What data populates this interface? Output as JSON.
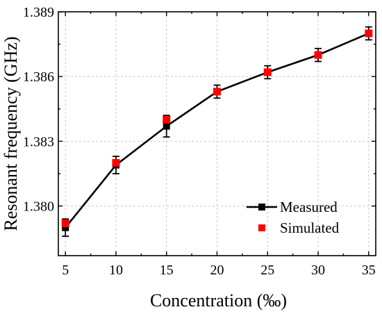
{
  "chart_data": {
    "type": "line",
    "xlabel": "Concentration (‰)",
    "ylabel": "Resonant frequency (GHz)",
    "xlim": [
      4.3,
      35.7
    ],
    "ylim": [
      1.3777,
      1.389
    ],
    "xticks": [
      5,
      10,
      15,
      20,
      25,
      30,
      35
    ],
    "xtick_labels": [
      "5",
      "10",
      "15",
      "20",
      "25",
      "30",
      "35"
    ],
    "yticks": [
      1.38,
      1.383,
      1.386,
      1.389
    ],
    "ytick_labels": [
      "1.380",
      "1.383",
      "1.386",
      "1.389"
    ],
    "grid": true,
    "legend_position": "bottom-right",
    "series": [
      {
        "name": "Measured",
        "style": "line-square",
        "color": "#000000",
        "x": [
          5,
          10,
          15,
          20,
          25,
          30,
          35
        ],
        "y": [
          1.379,
          1.3819,
          1.3837,
          1.3853,
          1.3862,
          1.387,
          1.388
        ],
        "err": [
          0.0004,
          0.0004,
          0.0005,
          0.0003,
          0.0003,
          0.0003,
          0.0003
        ]
      },
      {
        "name": "Simulated",
        "style": "square",
        "color": "#ff0000",
        "x": [
          5,
          10,
          15,
          20,
          25,
          30,
          35
        ],
        "y": [
          1.3792,
          1.382,
          1.384,
          1.3853,
          1.3862,
          1.387,
          1.388
        ]
      }
    ]
  }
}
